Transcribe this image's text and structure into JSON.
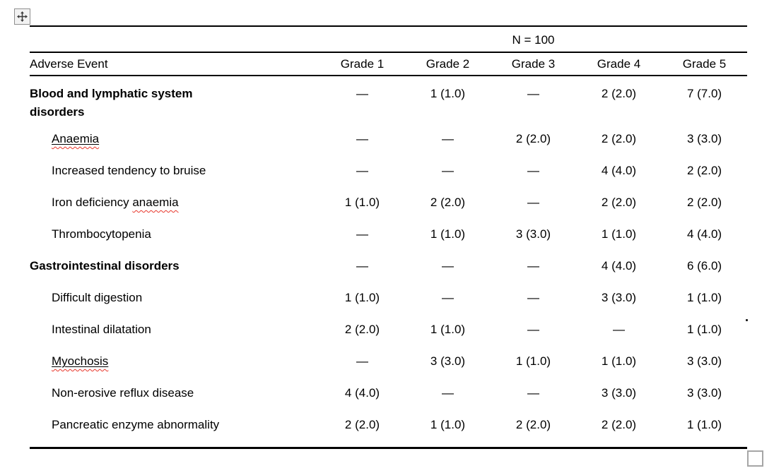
{
  "ui": {
    "move_handle_icon": "table-move-cross-icon",
    "resize_handle_icon": "table-resize-handle"
  },
  "colors": {
    "text": "#000000",
    "table_rule": "#000000",
    "spellcheck_squiggle": "#e8352a",
    "handle_border": "#8f8f8f",
    "handle_fill": "#f2f2f2",
    "resize_border": "#a6a6a6"
  },
  "table": {
    "n_label": "N = 100",
    "columns": [
      "Adverse Event",
      "Grade 1",
      "Grade 2",
      "Grade 3",
      "Grade 4",
      "Grade 5"
    ],
    "rows": [
      {
        "bold": true,
        "indent": false,
        "two_line": true,
        "label_parts": [
          {
            "text": "Blood and lymphatic system disorders",
            "misspelled": false,
            "underline": false
          }
        ],
        "values": [
          "—",
          "1 (1.0)",
          "—",
          "2 (2.0)",
          "7 (7.0)"
        ]
      },
      {
        "bold": false,
        "indent": true,
        "two_line": false,
        "label_parts": [
          {
            "text": "Anaemia",
            "misspelled": true,
            "underline": true
          }
        ],
        "values": [
          "—",
          "—",
          "2 (2.0)",
          "2 (2.0)",
          "3 (3.0)"
        ]
      },
      {
        "bold": false,
        "indent": true,
        "two_line": false,
        "label_parts": [
          {
            "text": "Increased tendency to bruise",
            "misspelled": false,
            "underline": false
          }
        ],
        "values": [
          "—",
          "—",
          "—",
          "4 (4.0)",
          "2 (2.0)"
        ]
      },
      {
        "bold": false,
        "indent": true,
        "two_line": false,
        "label_parts": [
          {
            "text": "Iron deficiency ",
            "misspelled": false,
            "underline": false
          },
          {
            "text": "anaemia",
            "misspelled": true,
            "underline": false
          }
        ],
        "values": [
          "1 (1.0)",
          "2 (2.0)",
          "—",
          "2 (2.0)",
          "2 (2.0)"
        ]
      },
      {
        "bold": false,
        "indent": true,
        "two_line": false,
        "label_parts": [
          {
            "text": "Thrombocytopenia",
            "misspelled": false,
            "underline": false
          }
        ],
        "values": [
          "—",
          "1 (1.0)",
          "3 (3.0)",
          "1 (1.0)",
          "4 (4.0)"
        ]
      },
      {
        "bold": true,
        "indent": false,
        "two_line": false,
        "label_parts": [
          {
            "text": "Gastrointestinal disorders",
            "misspelled": false,
            "underline": false
          }
        ],
        "values": [
          "—",
          "—",
          "—",
          "4 (4.0)",
          "6 (6.0)"
        ]
      },
      {
        "bold": false,
        "indent": true,
        "two_line": false,
        "label_parts": [
          {
            "text": "Difficult digestion",
            "misspelled": false,
            "underline": false
          }
        ],
        "values": [
          "1 (1.0)",
          "—",
          "—",
          "3 (3.0)",
          "1 (1.0)"
        ]
      },
      {
        "bold": false,
        "indent": true,
        "two_line": false,
        "label_parts": [
          {
            "text": "Intestinal dilatation",
            "misspelled": false,
            "underline": false
          }
        ],
        "values": [
          "2 (2.0)",
          "1 (1.0)",
          "—",
          "—",
          "1 (1.0)"
        ]
      },
      {
        "bold": false,
        "indent": true,
        "two_line": false,
        "label_parts": [
          {
            "text": "Myochosis",
            "misspelled": true,
            "underline": true
          }
        ],
        "values": [
          "—",
          "3 (3.0)",
          "1 (1.0)",
          "1 (1.0)",
          "3 (3.0)"
        ]
      },
      {
        "bold": false,
        "indent": true,
        "two_line": false,
        "label_parts": [
          {
            "text": "Non-erosive reflux disease",
            "misspelled": false,
            "underline": false
          }
        ],
        "values": [
          "4 (4.0)",
          "—",
          "—",
          "3 (3.0)",
          "3 (3.0)"
        ]
      },
      {
        "bold": false,
        "indent": true,
        "two_line": false,
        "label_parts": [
          {
            "text": "Pancreatic enzyme abnormality",
            "misspelled": false,
            "underline": false
          }
        ],
        "values": [
          "2 (2.0)",
          "1 (1.0)",
          "2 (2.0)",
          "2 (2.0)",
          "1 (1.0)"
        ]
      }
    ]
  }
}
